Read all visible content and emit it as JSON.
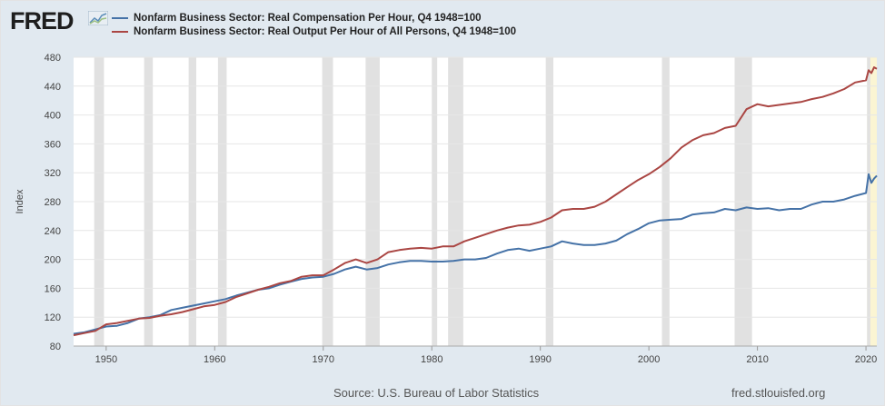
{
  "header": {
    "logo_text": "FRED",
    "logo_mark": "fred-chart-logo-icon"
  },
  "legend": [
    {
      "name": "Nonfarm Business Sector: Real Compensation Per Hour, Q4 1948=100",
      "color": "#4572a7"
    },
    {
      "name": "Nonfarm Business Sector: Real Output Per Hour of All Persons, Q4 1948=100",
      "color": "#aa4643"
    }
  ],
  "footer": {
    "source": "Source: U.S. Bureau of Labor Statistics",
    "site": "fred.stlouisfed.org"
  },
  "colors": {
    "background": "#e1e9f0",
    "plot_background": "#ffffff",
    "recession": "#e1e1e1",
    "highlight": "#fbf5d3",
    "grid": "#e6e6e6"
  },
  "chart_data": {
    "type": "line",
    "xlabel": "",
    "ylabel": "Index",
    "xlim": [
      1947,
      2021
    ],
    "ylim": [
      80,
      480
    ],
    "grid": true,
    "legend_position": "top-left",
    "x_ticks": [
      1950,
      1960,
      1970,
      1980,
      1990,
      2000,
      2010,
      2020
    ],
    "y_ticks": [
      80,
      120,
      160,
      200,
      240,
      280,
      320,
      360,
      400,
      440,
      480
    ],
    "recessions": [
      [
        1948.9,
        1949.8
      ],
      [
        1953.5,
        1954.3
      ],
      [
        1957.6,
        1958.3
      ],
      [
        1960.3,
        1961.1
      ],
      [
        1969.9,
        1970.9
      ],
      [
        1973.9,
        1975.2
      ],
      [
        1980.0,
        1980.5
      ],
      [
        1981.5,
        1982.9
      ],
      [
        1990.5,
        1991.2
      ],
      [
        2001.2,
        2001.9
      ],
      [
        2007.9,
        2009.5
      ],
      [
        2020.1,
        2020.4
      ]
    ],
    "highlight_range": [
      2020.1,
      2021.0
    ],
    "series": [
      {
        "name": "Nonfarm Business Sector: Real Compensation Per Hour, Q4 1948=100",
        "color": "#4572a7",
        "x": [
          1947,
          1948,
          1949,
          1950,
          1951,
          1952,
          1953,
          1954,
          1955,
          1956,
          1957,
          1958,
          1959,
          1960,
          1961,
          1962,
          1963,
          1964,
          1965,
          1966,
          1967,
          1968,
          1969,
          1970,
          1971,
          1972,
          1973,
          1974,
          1975,
          1976,
          1977,
          1978,
          1979,
          1980,
          1981,
          1982,
          1983,
          1984,
          1985,
          1986,
          1987,
          1988,
          1989,
          1990,
          1991,
          1992,
          1993,
          1994,
          1995,
          1996,
          1997,
          1998,
          1999,
          2000,
          2001,
          2002,
          2003,
          2004,
          2005,
          2006,
          2007,
          2008,
          2009,
          2010,
          2011,
          2012,
          2013,
          2014,
          2015,
          2016,
          2017,
          2018,
          2019,
          2020,
          2020.25,
          2020.5,
          2020.75,
          2021
        ],
        "y": [
          97,
          99,
          103,
          107,
          108,
          112,
          118,
          120,
          123,
          130,
          133,
          136,
          139,
          142,
          145,
          150,
          154,
          158,
          160,
          165,
          169,
          173,
          175,
          176,
          180,
          186,
          190,
          186,
          188,
          193,
          196,
          198,
          198,
          197,
          197,
          198,
          200,
          200,
          202,
          208,
          213,
          215,
          212,
          215,
          218,
          225,
          222,
          220,
          220,
          222,
          226,
          235,
          242,
          250,
          254,
          255,
          256,
          262,
          264,
          265,
          270,
          268,
          272,
          270,
          271,
          268,
          270,
          270,
          276,
          280,
          280,
          283,
          288,
          292,
          318,
          306,
          312,
          316
        ]
      },
      {
        "name": "Nonfarm Business Sector: Real Output Per Hour of All Persons, Q4 1948=100",
        "color": "#aa4643",
        "x": [
          1947,
          1948,
          1949,
          1950,
          1951,
          1952,
          1953,
          1954,
          1955,
          1956,
          1957,
          1958,
          1959,
          1960,
          1961,
          1962,
          1963,
          1964,
          1965,
          1966,
          1967,
          1968,
          1969,
          1970,
          1971,
          1972,
          1973,
          1974,
          1975,
          1976,
          1977,
          1978,
          1979,
          1980,
          1981,
          1982,
          1983,
          1984,
          1985,
          1986,
          1987,
          1988,
          1989,
          1990,
          1991,
          1992,
          1993,
          1994,
          1995,
          1996,
          1997,
          1998,
          1999,
          2000,
          2001,
          2002,
          2003,
          2004,
          2005,
          2006,
          2007,
          2008,
          2009,
          2010,
          2011,
          2012,
          2013,
          2014,
          2015,
          2016,
          2017,
          2018,
          2019,
          2020,
          2020.25,
          2020.5,
          2020.75,
          2021
        ],
        "y": [
          95,
          98,
          101,
          110,
          112,
          115,
          118,
          119,
          122,
          124,
          127,
          131,
          135,
          137,
          141,
          148,
          153,
          158,
          162,
          167,
          170,
          176,
          178,
          178,
          186,
          195,
          200,
          195,
          200,
          210,
          213,
          215,
          216,
          215,
          218,
          218,
          225,
          230,
          235,
          240,
          244,
          247,
          248,
          252,
          258,
          268,
          270,
          270,
          273,
          280,
          290,
          300,
          310,
          318,
          328,
          340,
          355,
          365,
          372,
          375,
          382,
          385,
          408,
          415,
          412,
          414,
          416,
          418,
          422,
          425,
          430,
          436,
          445,
          448,
          462,
          458,
          466,
          464
        ]
      }
    ]
  }
}
